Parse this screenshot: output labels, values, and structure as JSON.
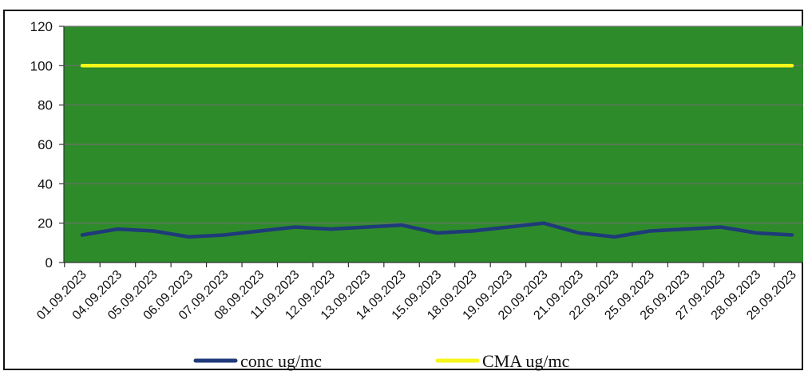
{
  "chart_data": {
    "type": "line",
    "title": "",
    "xlabel": "",
    "ylabel": "",
    "ylim": [
      0,
      120
    ],
    "yticks": [
      0,
      20,
      40,
      60,
      80,
      100,
      120
    ],
    "grid": "horizontal",
    "legend_position": "bottom",
    "plot_background": "#2e8b2a",
    "categories": [
      "01.09.2023",
      "04.09.2023",
      "05.09.2023",
      "06.09.2023",
      "07.09.2023",
      "08.09.2023",
      "11.09.2023",
      "12.09.2023",
      "13.09.2023",
      "14.09.2023",
      "15.09.2023",
      "18.09.2023",
      "19.09.2023",
      "20.09.2023",
      "21.09.2023",
      "22.09.2023",
      "25.09.2023",
      "26.09.2023",
      "27.09.2023",
      "28.09.2023",
      "29.09.2023"
    ],
    "series": [
      {
        "name": "conc ug/mc",
        "color": "#1f3a7a",
        "values": [
          14,
          17,
          16,
          13,
          14,
          16,
          18,
          17,
          18,
          19,
          15,
          16,
          18,
          20,
          15,
          13,
          16,
          17,
          18,
          15,
          14
        ]
      },
      {
        "name": "CMA ug/mc",
        "color": "#f6f61a",
        "values": [
          100,
          100,
          100,
          100,
          100,
          100,
          100,
          100,
          100,
          100,
          100,
          100,
          100,
          100,
          100,
          100,
          100,
          100,
          100,
          100,
          100
        ]
      }
    ]
  }
}
